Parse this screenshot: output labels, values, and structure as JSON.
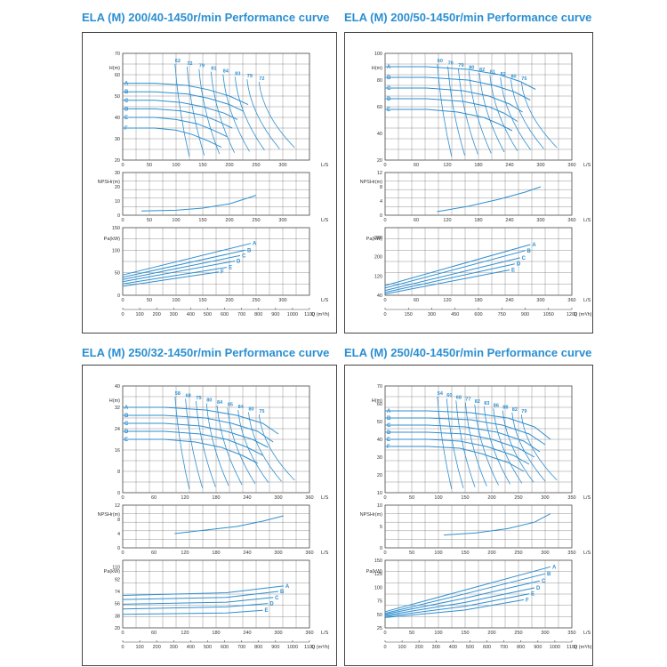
{
  "colors": {
    "title": "#2b8fd1",
    "curve": "#2f8fd0",
    "grid": "#666666",
    "axis": "#444444"
  },
  "chart_data": [
    {
      "type": "line",
      "title": "ELA (M) 200/40-1450r/min Performance curve",
      "flow_unit": "L/S",
      "q_unit": "Q (m³/h)",
      "head": {
        "ylabel": "H(m)",
        "xlim": [
          0,
          350
        ],
        "ylim": [
          20,
          70
        ],
        "xticks": [
          0,
          50,
          100,
          150,
          200,
          250,
          300
        ],
        "yticks": [
          20,
          30,
          40,
          50,
          60,
          70
        ],
        "series": [
          {
            "name": "A",
            "x": [
              0,
              60,
              120,
              160,
              200,
              235
            ],
            "y": [
              56,
              56,
              55,
              53,
              50,
              46
            ]
          },
          {
            "name": "B",
            "x": [
              0,
              60,
              120,
              160,
              200,
              225
            ],
            "y": [
              52,
              52,
              51,
              49,
              46,
              43
            ]
          },
          {
            "name": "C",
            "x": [
              0,
              60,
              110,
              150,
              190,
              215
            ],
            "y": [
              48,
              48,
              47,
              45,
              42,
              39
            ]
          },
          {
            "name": "D",
            "x": [
              0,
              60,
              110,
              150,
              180,
              205
            ],
            "y": [
              44,
              44,
              43,
              41,
              38,
              35
            ]
          },
          {
            "name": "E",
            "x": [
              0,
              60,
              100,
              140,
              170,
              195
            ],
            "y": [
              40,
              40,
              39,
              37,
              34,
              31
            ]
          },
          {
            "name": "F",
            "x": [
              0,
              60,
              100,
              130,
              160,
              185
            ],
            "y": [
              35,
              35,
              34,
              32,
              29,
              26
            ]
          }
        ],
        "eff_labels": [
          "62",
          "72",
          "79",
          "81",
          "84",
          "83",
          "79",
          "72"
        ]
      },
      "npsh": {
        "ylabel": "NPSHr(m)",
        "xlim": [
          0,
          350
        ],
        "ylim": [
          0,
          30
        ],
        "xticks": [
          0,
          50,
          100,
          150,
          200,
          250,
          300
        ],
        "yticks": [
          0,
          10,
          20,
          30
        ],
        "x": [
          35,
          100,
          150,
          200,
          250
        ],
        "y": [
          3,
          3.5,
          5,
          8,
          14
        ]
      },
      "power": {
        "ylabel": "Pa(kW)",
        "xlim": [
          0,
          350
        ],
        "ylim": [
          0,
          150
        ],
        "xticks": [
          0,
          50,
          100,
          150,
          200,
          250,
          300
        ],
        "yticks": [
          0,
          50,
          100,
          150
        ],
        "series": [
          {
            "name": "A",
            "x": [
              0,
              240
            ],
            "y": [
              45,
              115
            ]
          },
          {
            "name": "B",
            "x": [
              0,
              230
            ],
            "y": [
              40,
              100
            ]
          },
          {
            "name": "C",
            "x": [
              0,
              220
            ],
            "y": [
              35,
              88
            ]
          },
          {
            "name": "D",
            "x": [
              0,
              210
            ],
            "y": [
              30,
              76
            ]
          },
          {
            "name": "E",
            "x": [
              0,
              195
            ],
            "y": [
              25,
              62
            ]
          },
          {
            "name": "F",
            "x": [
              0,
              180
            ],
            "y": [
              20,
              52
            ]
          }
        ]
      },
      "q_ticks": [
        "0",
        "100",
        "200",
        "300",
        "400",
        "500",
        "600",
        "700",
        "800",
        "900",
        "1000",
        "1100"
      ]
    },
    {
      "type": "line",
      "title": "ELA (M) 200/50-1450r/min Performance curve",
      "flow_unit": "L/S",
      "q_unit": "Q (m³/h)",
      "head": {
        "ylabel": "H(m)",
        "xlim": [
          0,
          360
        ],
        "ylim": [
          20,
          100
        ],
        "xticks": [
          0,
          60,
          120,
          180,
          240,
          300,
          360
        ],
        "yticks": [
          20,
          40,
          60,
          80,
          100
        ],
        "series": [
          {
            "name": "A",
            "x": [
              0,
              80,
              160,
              220,
              260,
              290
            ],
            "y": [
              90,
              90,
              88,
              84,
              79,
              73
            ]
          },
          {
            "name": "B",
            "x": [
              0,
              80,
              160,
              210,
              250,
              280
            ],
            "y": [
              82,
              82,
              80,
              76,
              71,
              65
            ]
          },
          {
            "name": "C",
            "x": [
              0,
              80,
              150,
              200,
              240,
              265
            ],
            "y": [
              74,
              74,
              72,
              68,
              62,
              56
            ]
          },
          {
            "name": "D",
            "x": [
              0,
              80,
              150,
              200,
              230,
              255
            ],
            "y": [
              66,
              66,
              64,
              60,
              55,
              49
            ]
          },
          {
            "name": "E",
            "x": [
              0,
              80,
              140,
              190,
              220,
              245
            ],
            "y": [
              58,
              58,
              56,
              52,
              47,
              42
            ]
          }
        ],
        "eff_labels": [
          "60",
          "70",
          "79",
          "80",
          "82",
          "81",
          "82",
          "80",
          "75"
        ]
      },
      "npsh": {
        "ylabel": "NPSHr(m)",
        "xlim": [
          0,
          360
        ],
        "ylim": [
          0,
          12
        ],
        "xticks": [
          0,
          60,
          120,
          180,
          240,
          300,
          360
        ],
        "yticks": [
          0,
          4,
          8,
          12
        ],
        "x": [
          100,
          160,
          220,
          270,
          300
        ],
        "y": [
          1,
          2.5,
          4.5,
          6.5,
          8
        ]
      },
      "power": {
        "ylabel": "Pa(kW)",
        "xlim": [
          0,
          360
        ],
        "ylim": [
          40,
          320
        ],
        "xticks": [
          0,
          60,
          120,
          180,
          240,
          300,
          360
        ],
        "yticks": [
          40,
          120,
          200,
          280
        ],
        "series": [
          {
            "name": "A",
            "x": [
              0,
              280
            ],
            "y": [
              80,
              250
            ]
          },
          {
            "name": "B",
            "x": [
              0,
              270
            ],
            "y": [
              70,
              225
            ]
          },
          {
            "name": "C",
            "x": [
              0,
              260
            ],
            "y": [
              60,
              195
            ]
          },
          {
            "name": "D",
            "x": [
              0,
              250
            ],
            "y": [
              52,
              170
            ]
          },
          {
            "name": "E",
            "x": [
              0,
              240
            ],
            "y": [
              45,
              145
            ]
          }
        ]
      },
      "q_ticks": [
        "0",
        "150",
        "300",
        "450",
        "600",
        "750",
        "900",
        "1050",
        "1200"
      ]
    },
    {
      "type": "line",
      "title": "ELA (M) 250/32-1450r/min Performance curve",
      "flow_unit": "L/S",
      "q_unit": "Q (m³/h)",
      "head": {
        "ylabel": "H(m)",
        "xlim": [
          0,
          360
        ],
        "ylim": [
          0,
          40
        ],
        "xticks": [
          0,
          60,
          120,
          180,
          240,
          300,
          360
        ],
        "yticks": [
          0,
          8,
          16,
          24,
          32,
          40
        ],
        "series": [
          {
            "name": "A",
            "x": [
              0,
              80,
              160,
              220,
              270,
              300
            ],
            "y": [
              32,
              32,
              31,
              29,
              26,
              22
            ]
          },
          {
            "name": "B",
            "x": [
              0,
              80,
              160,
              210,
              260,
              290
            ],
            "y": [
              29,
              29,
              28,
              26,
              23,
              19
            ]
          },
          {
            "name": "C",
            "x": [
              0,
              80,
              150,
              200,
              250,
              280
            ],
            "y": [
              26,
              26,
              25,
              23,
              20,
              17
            ]
          },
          {
            "name": "D",
            "x": [
              0,
              80,
              150,
              200,
              240,
              270
            ],
            "y": [
              23,
              23,
              22,
              20,
              17,
              14
            ]
          },
          {
            "name": "E",
            "x": [
              0,
              80,
              140,
              190,
              230,
              260
            ],
            "y": [
              20,
              20,
              19,
              17,
              14,
              11
            ]
          }
        ],
        "eff_labels": [
          "58",
          "68",
          "75",
          "80",
          "84",
          "85",
          "84",
          "80",
          "75"
        ]
      },
      "npsh": {
        "ylabel": "NPSHr(m)",
        "xlim": [
          0,
          360
        ],
        "ylim": [
          0,
          12
        ],
        "xticks": [
          0,
          60,
          120,
          180,
          240,
          300,
          360
        ],
        "yticks": [
          0,
          4,
          8,
          12
        ],
        "x": [
          100,
          160,
          220,
          270,
          310
        ],
        "y": [
          4,
          5,
          6,
          7.5,
          9
        ]
      },
      "power": {
        "ylabel": "Pa(kW)",
        "xlim": [
          0,
          360
        ],
        "ylim": [
          20,
          120
        ],
        "xticks": [
          0,
          60,
          120,
          180,
          240,
          300,
          360
        ],
        "yticks": [
          20,
          38,
          56,
          74,
          92,
          110
        ],
        "series": [
          {
            "name": "A",
            "x": [
              0,
              200,
              310
            ],
            "y": [
              68,
              72,
              82
            ]
          },
          {
            "name": "B",
            "x": [
              0,
              200,
              300
            ],
            "y": [
              62,
              65,
              74
            ]
          },
          {
            "name": "C",
            "x": [
              0,
              200,
              290
            ],
            "y": [
              55,
              58,
              65
            ]
          },
          {
            "name": "D",
            "x": [
              0,
              200,
              280
            ],
            "y": [
              48,
              51,
              56
            ]
          },
          {
            "name": "E",
            "x": [
              0,
              200,
              270
            ],
            "y": [
              40,
              42,
              46
            ]
          }
        ]
      },
      "q_ticks": [
        "0",
        "100",
        "200",
        "300",
        "400",
        "500",
        "600",
        "700",
        "800",
        "900",
        "1000",
        "1100"
      ]
    },
    {
      "type": "line",
      "title": "ELA (M) 250/40-1450r/min Performance curve",
      "flow_unit": "L/S",
      "q_unit": "Q (m³/h)",
      "head": {
        "ylabel": "H(m)",
        "xlim": [
          0,
          350
        ],
        "ylim": [
          10,
          70
        ],
        "xticks": [
          0,
          50,
          100,
          150,
          200,
          250,
          300,
          350
        ],
        "yticks": [
          10,
          20,
          30,
          40,
          50,
          60,
          70
        ],
        "series": [
          {
            "name": "A",
            "x": [
              0,
              80,
              160,
              230,
              280,
              310
            ],
            "y": [
              56,
              56,
              55,
              52,
              47,
              40
            ]
          },
          {
            "name": "B",
            "x": [
              0,
              80,
              160,
              220,
              270,
              300
            ],
            "y": [
              52,
              52,
              51,
              48,
              43,
              37
            ]
          },
          {
            "name": "C",
            "x": [
              0,
              80,
              150,
              210,
              260,
              290
            ],
            "y": [
              48,
              48,
              47,
              44,
              39,
              33
            ]
          },
          {
            "name": "D",
            "x": [
              0,
              80,
              150,
              200,
              250,
              280
            ],
            "y": [
              44,
              44,
              43,
              40,
              35,
              30
            ]
          },
          {
            "name": "E",
            "x": [
              0,
              80,
              140,
              190,
              240,
              270
            ],
            "y": [
              40,
              40,
              39,
              36,
              31,
              26
            ]
          },
          {
            "name": "F",
            "x": [
              0,
              80,
              140,
              180,
              230,
              260
            ],
            "y": [
              36,
              36,
              35,
              32,
              27,
              22
            ]
          }
        ],
        "eff_labels": [
          "54",
          "60",
          "68",
          "77",
          "82",
          "83",
          "86",
          "88",
          "82",
          "79"
        ]
      },
      "npsh": {
        "ylabel": "NPSHr(m)",
        "xlim": [
          0,
          350
        ],
        "ylim": [
          0,
          10
        ],
        "xticks": [
          0,
          50,
          100,
          150,
          200,
          250,
          300,
          350
        ],
        "yticks": [
          0,
          5,
          10
        ],
        "x": [
          110,
          170,
          230,
          280,
          310
        ],
        "y": [
          3,
          3.5,
          4.5,
          6,
          8
        ]
      },
      "power": {
        "ylabel": "Pa(kW)",
        "xlim": [
          0,
          350
        ],
        "ylim": [
          25,
          150
        ],
        "xticks": [
          0,
          50,
          100,
          150,
          200,
          250,
          300,
          350
        ],
        "yticks": [
          25,
          50,
          75,
          100,
          125,
          150
        ],
        "series": [
          {
            "name": "A",
            "x": [
              0,
              150,
              310
            ],
            "y": [
              55,
              95,
              138
            ]
          },
          {
            "name": "B",
            "x": [
              0,
              150,
              300
            ],
            "y": [
              52,
              88,
              125
            ]
          },
          {
            "name": "C",
            "x": [
              0,
              150,
              290
            ],
            "y": [
              50,
              80,
              112
            ]
          },
          {
            "name": "D",
            "x": [
              0,
              150,
              280
            ],
            "y": [
              48,
              72,
              99
            ]
          },
          {
            "name": "E",
            "x": [
              0,
              150,
              270
            ],
            "y": [
              46,
              65,
              88
            ]
          },
          {
            "name": "F",
            "x": [
              0,
              150,
              260
            ],
            "y": [
              44,
              58,
              77
            ]
          }
        ]
      },
      "q_ticks": [
        "0",
        "100",
        "200",
        "300",
        "400",
        "500",
        "600",
        "700",
        "800",
        "900",
        "1000",
        "1100"
      ]
    }
  ]
}
